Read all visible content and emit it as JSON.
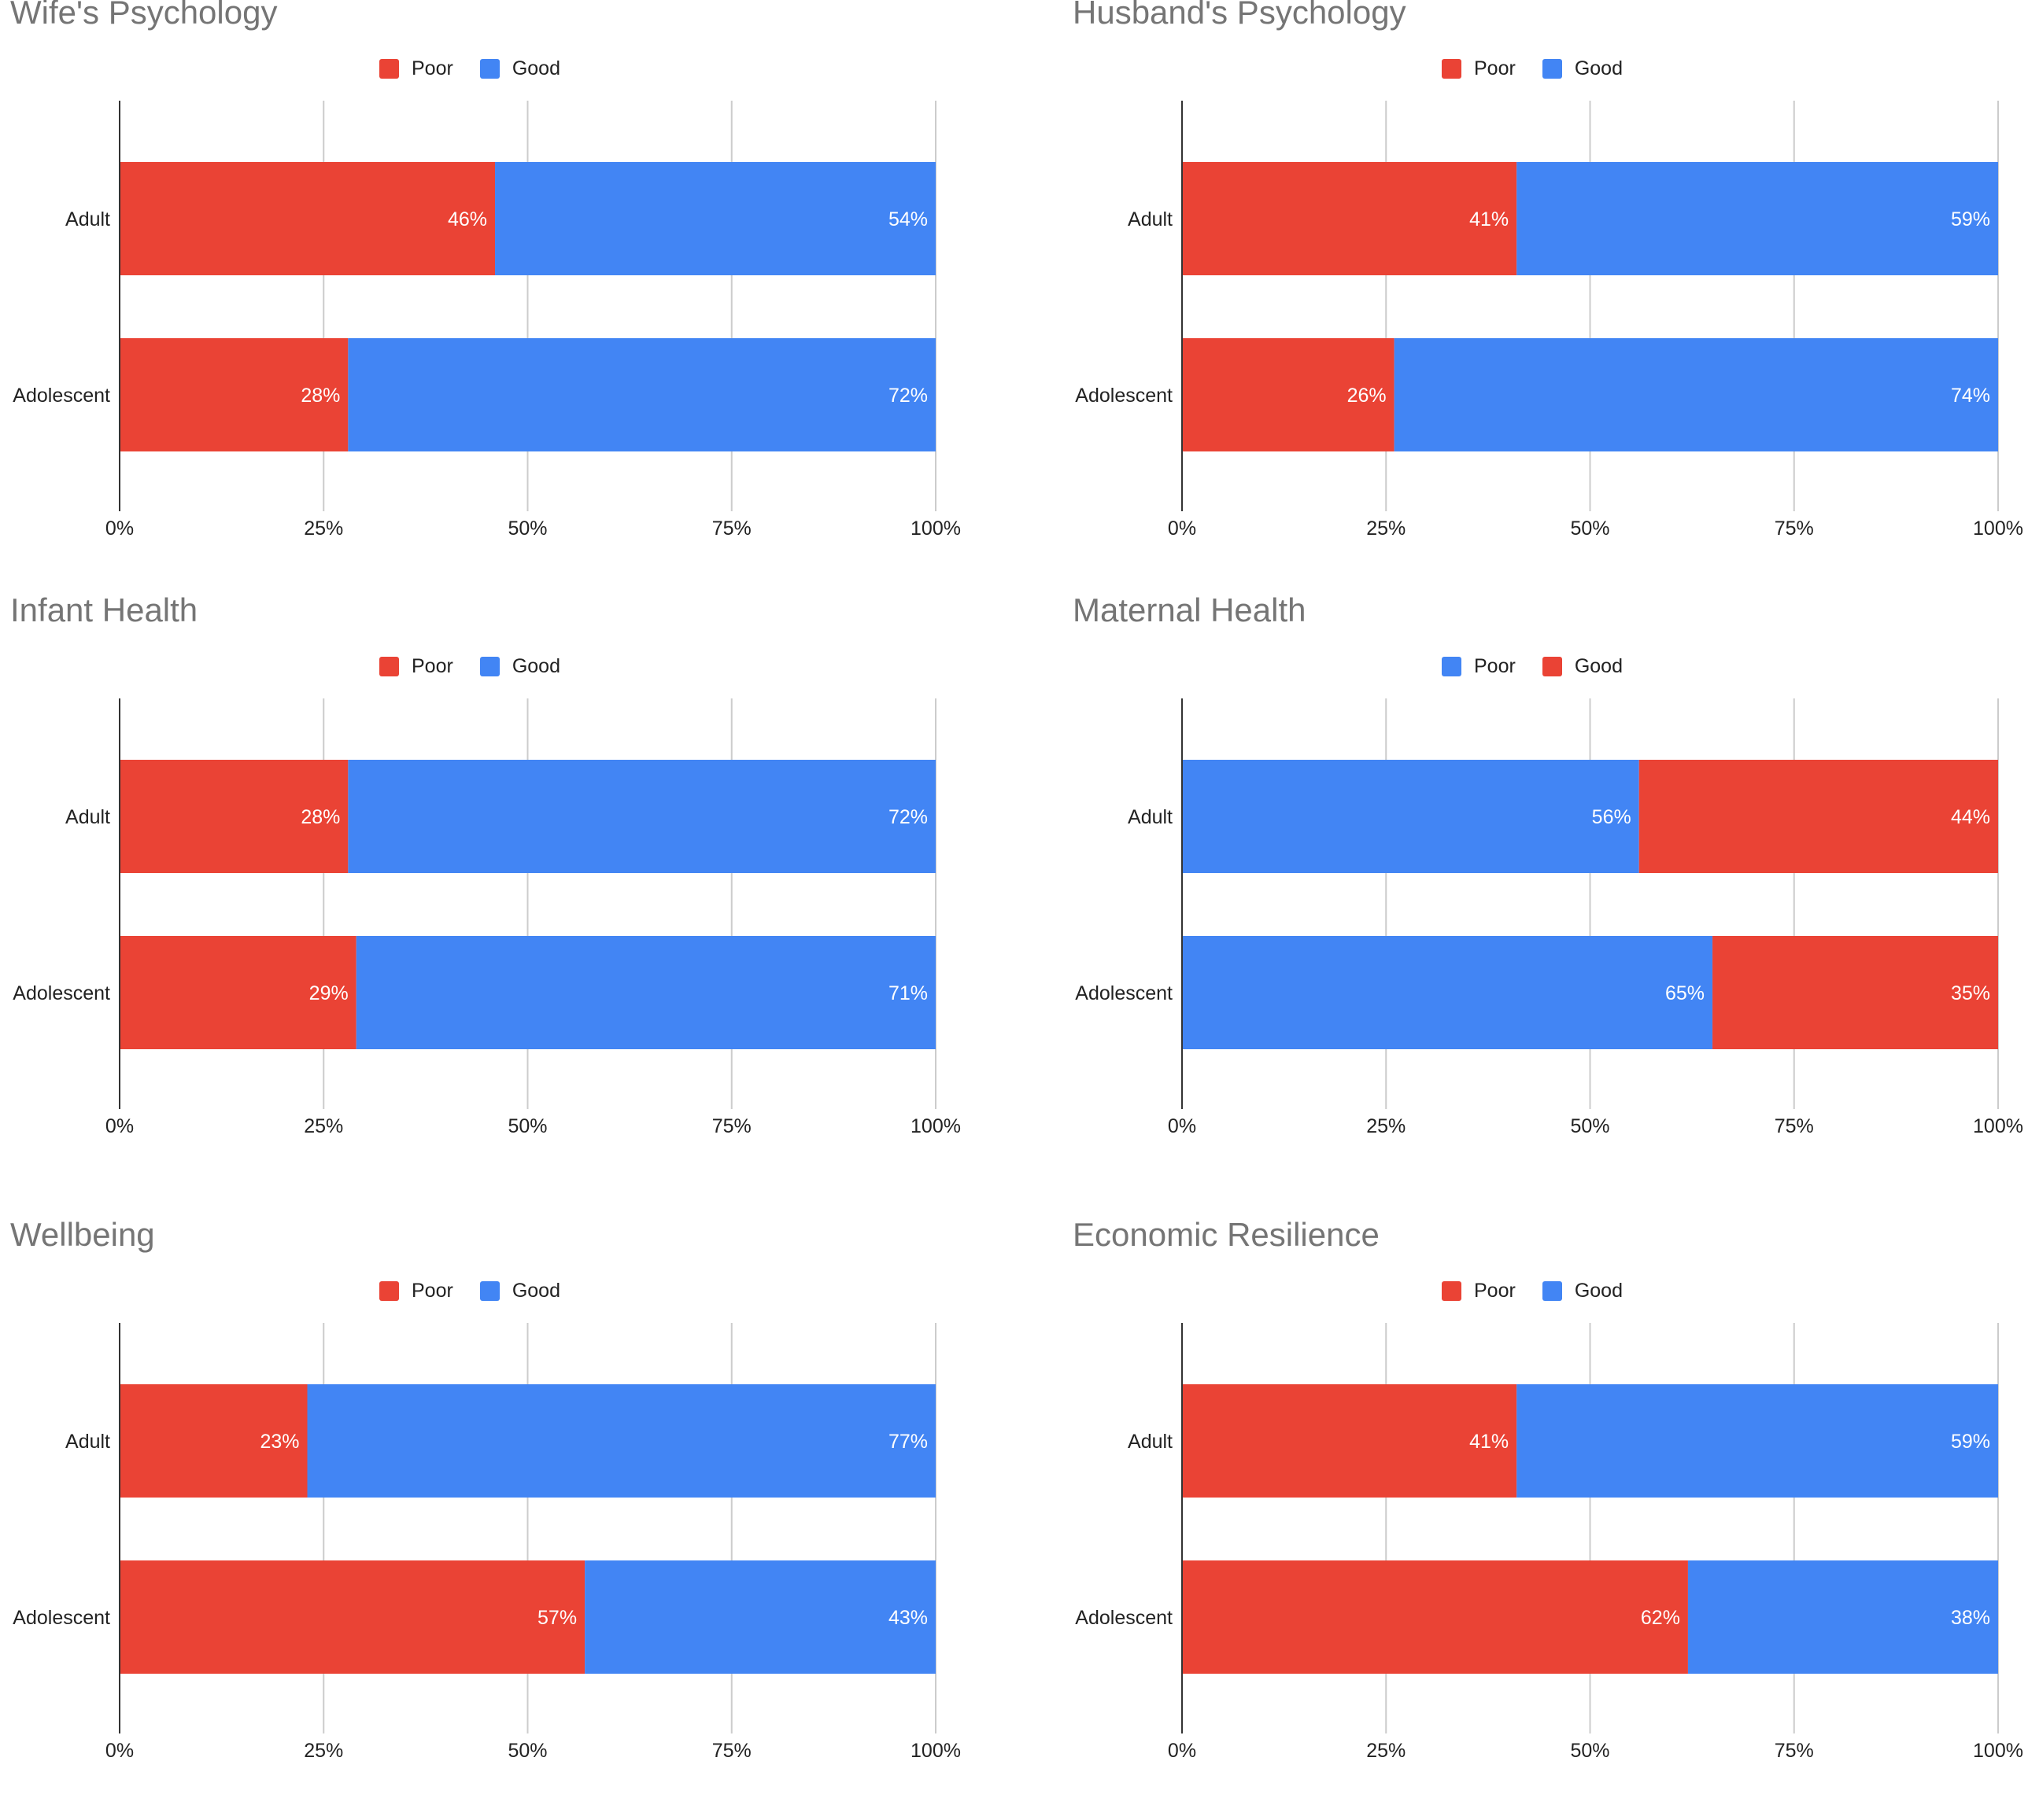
{
  "colors": {
    "red": "#EA4335",
    "blue": "#4285F4",
    "grid": "#cccccc",
    "axis": "#333333"
  },
  "chart_data": [
    {
      "type": "bar",
      "stacked": "percent",
      "orientation": "horizontal",
      "title": "Wife's Psychology",
      "categories": [
        "Adult",
        "Adolescent"
      ],
      "series": [
        {
          "name": "Poor",
          "color": "#EA4335",
          "values": [
            46,
            28
          ],
          "labels": [
            "46%",
            "28%"
          ]
        },
        {
          "name": "Good",
          "color": "#4285F4",
          "values": [
            54,
            72
          ],
          "labels": [
            "54%",
            "72%"
          ]
        }
      ],
      "xlim": [
        0,
        100
      ],
      "ticks": [
        "0%",
        "25%",
        "50%",
        "75%",
        "100%"
      ],
      "grid": true,
      "legend": "top"
    },
    {
      "type": "bar",
      "stacked": "percent",
      "orientation": "horizontal",
      "title": "Husband's Psychology",
      "categories": [
        "Adult",
        "Adolescent"
      ],
      "series": [
        {
          "name": "Poor",
          "color": "#EA4335",
          "values": [
            41,
            26
          ],
          "labels": [
            "41%",
            "26%"
          ]
        },
        {
          "name": "Good",
          "color": "#4285F4",
          "values": [
            59,
            74
          ],
          "labels": [
            "59%",
            "74%"
          ]
        }
      ],
      "xlim": [
        0,
        100
      ],
      "ticks": [
        "0%",
        "25%",
        "50%",
        "75%",
        "100%"
      ],
      "grid": true,
      "legend": "top"
    },
    {
      "type": "bar",
      "stacked": "percent",
      "orientation": "horizontal",
      "title": "Infant Health",
      "categories": [
        "Adult",
        "Adolescent"
      ],
      "series": [
        {
          "name": "Poor",
          "color": "#EA4335",
          "values": [
            28,
            29
          ],
          "labels": [
            "28%",
            "29%"
          ]
        },
        {
          "name": "Good",
          "color": "#4285F4",
          "values": [
            72,
            71
          ],
          "labels": [
            "72%",
            "71%"
          ]
        }
      ],
      "xlim": [
        0,
        100
      ],
      "ticks": [
        "0%",
        "25%",
        "50%",
        "75%",
        "100%"
      ],
      "grid": true,
      "legend": "top"
    },
    {
      "type": "bar",
      "stacked": "percent",
      "orientation": "horizontal",
      "title": "Maternal Health",
      "categories": [
        "Adult",
        "Adolescent"
      ],
      "series": [
        {
          "name": "Poor",
          "color": "#4285F4",
          "values": [
            56,
            65
          ],
          "labels": [
            "56%",
            "65%"
          ]
        },
        {
          "name": "Good",
          "color": "#EA4335",
          "values": [
            44,
            35
          ],
          "labels": [
            "44%",
            "35%"
          ]
        }
      ],
      "xlim": [
        0,
        100
      ],
      "ticks": [
        "0%",
        "25%",
        "50%",
        "75%",
        "100%"
      ],
      "grid": true,
      "legend": "top"
    },
    {
      "type": "bar",
      "stacked": "percent",
      "orientation": "horizontal",
      "title": "Wellbeing",
      "categories": [
        "Adult",
        "Adolescent"
      ],
      "series": [
        {
          "name": "Poor",
          "color": "#EA4335",
          "values": [
            23,
            57
          ],
          "labels": [
            "23%",
            "57%"
          ]
        },
        {
          "name": "Good",
          "color": "#4285F4",
          "values": [
            77,
            43
          ],
          "labels": [
            "77%",
            "43%"
          ]
        }
      ],
      "xlim": [
        0,
        100
      ],
      "ticks": [
        "0%",
        "25%",
        "50%",
        "75%",
        "100%"
      ],
      "grid": true,
      "legend": "top"
    },
    {
      "type": "bar",
      "stacked": "percent",
      "orientation": "horizontal",
      "title": "Economic Resilience",
      "categories": [
        "Adult",
        "Adolescent"
      ],
      "series": [
        {
          "name": "Poor",
          "color": "#EA4335",
          "values": [
            41,
            62
          ],
          "labels": [
            "41%",
            "62%"
          ]
        },
        {
          "name": "Good",
          "color": "#4285F4",
          "values": [
            59,
            38
          ],
          "labels": [
            "59%",
            "38%"
          ]
        }
      ],
      "xlim": [
        0,
        100
      ],
      "ticks": [
        "0%",
        "25%",
        "50%",
        "75%",
        "100%"
      ],
      "grid": true,
      "legend": "top"
    }
  ]
}
